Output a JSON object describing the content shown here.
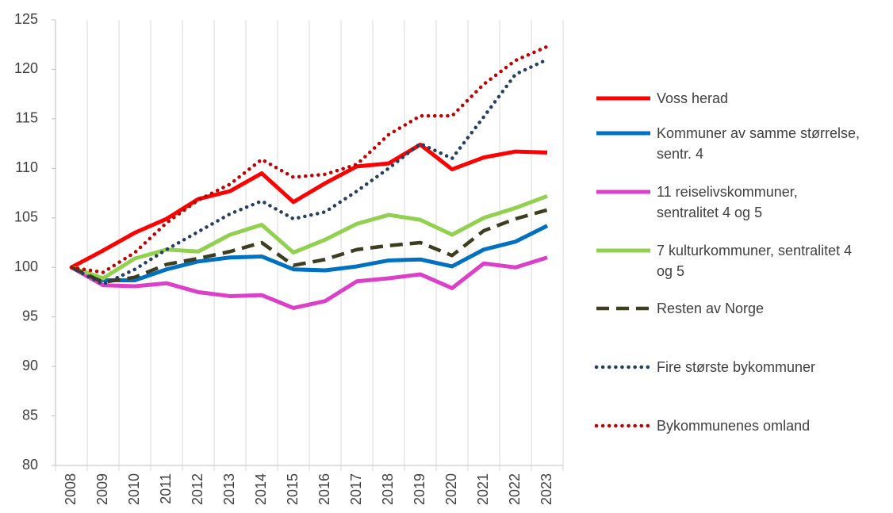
{
  "chart_data": {
    "type": "line",
    "categories": [
      "2008",
      "2009",
      "2010",
      "2011",
      "2012",
      "2013",
      "2014",
      "2015",
      "2016",
      "2017",
      "2018",
      "2019",
      "2020",
      "2021",
      "2022",
      "2023"
    ],
    "ylim": [
      80,
      125
    ],
    "yticks": [
      80,
      85,
      90,
      95,
      100,
      105,
      110,
      115,
      120,
      125
    ],
    "grid": true,
    "legend": "right",
    "series": [
      {
        "name": "Voss herad",
        "color": "#ff0000",
        "style": "solid",
        "values": [
          100,
          101.7,
          103.5,
          104.9,
          106.9,
          107.7,
          109.5,
          106.6,
          108.5,
          110.2,
          110.5,
          112.4,
          109.9,
          111.1,
          111.7,
          111.6
        ]
      },
      {
        "name": "Kommuner av samme størrelse, sentr. 4",
        "color": "#0070c0",
        "style": "solid",
        "values": [
          100,
          98.7,
          98.7,
          99.8,
          100.6,
          101.0,
          101.1,
          99.8,
          99.7,
          100.1,
          100.7,
          100.8,
          100.1,
          101.8,
          102.6,
          104.2
        ]
      },
      {
        "name": "11 reiselivskommuner, sentralitet 4 og 5",
        "color": "#dc3fc8",
        "style": "solid",
        "values": [
          100,
          98.2,
          98.1,
          98.4,
          97.5,
          97.1,
          97.2,
          95.9,
          96.6,
          98.6,
          98.9,
          99.3,
          97.9,
          100.4,
          100.0,
          101.0
        ]
      },
      {
        "name": "7 kulturkommuner, sentralitet 4 og 5",
        "color": "#92d050",
        "style": "solid",
        "values": [
          100,
          98.9,
          100.9,
          101.8,
          101.6,
          103.3,
          104.3,
          101.5,
          102.8,
          104.4,
          105.3,
          104.8,
          103.3,
          105.0,
          106.0,
          107.2
        ]
      },
      {
        "name": "Resten av Norge",
        "color": "#3d3d1f",
        "style": "dashed",
        "values": [
          100,
          98.5,
          99.0,
          100.3,
          100.9,
          101.6,
          102.5,
          100.2,
          100.8,
          101.8,
          102.2,
          102.5,
          101.2,
          103.7,
          104.9,
          105.8
        ]
      },
      {
        "name": "Fire største bykommuner",
        "color": "#243f60",
        "style": "dotted",
        "values": [
          100,
          98.3,
          99.8,
          101.8,
          103.6,
          105.4,
          106.7,
          104.9,
          105.6,
          107.7,
          110.0,
          112.5,
          111.0,
          115.2,
          119.5,
          121.0
        ]
      },
      {
        "name": "Bykommunenes omland",
        "color": "#c00000",
        "style": "dotted",
        "values": [
          100,
          99.5,
          101.5,
          104.5,
          106.8,
          108.4,
          110.9,
          109.1,
          109.4,
          110.4,
          113.4,
          115.3,
          115.3,
          118.5,
          120.9,
          122.3
        ]
      }
    ]
  }
}
